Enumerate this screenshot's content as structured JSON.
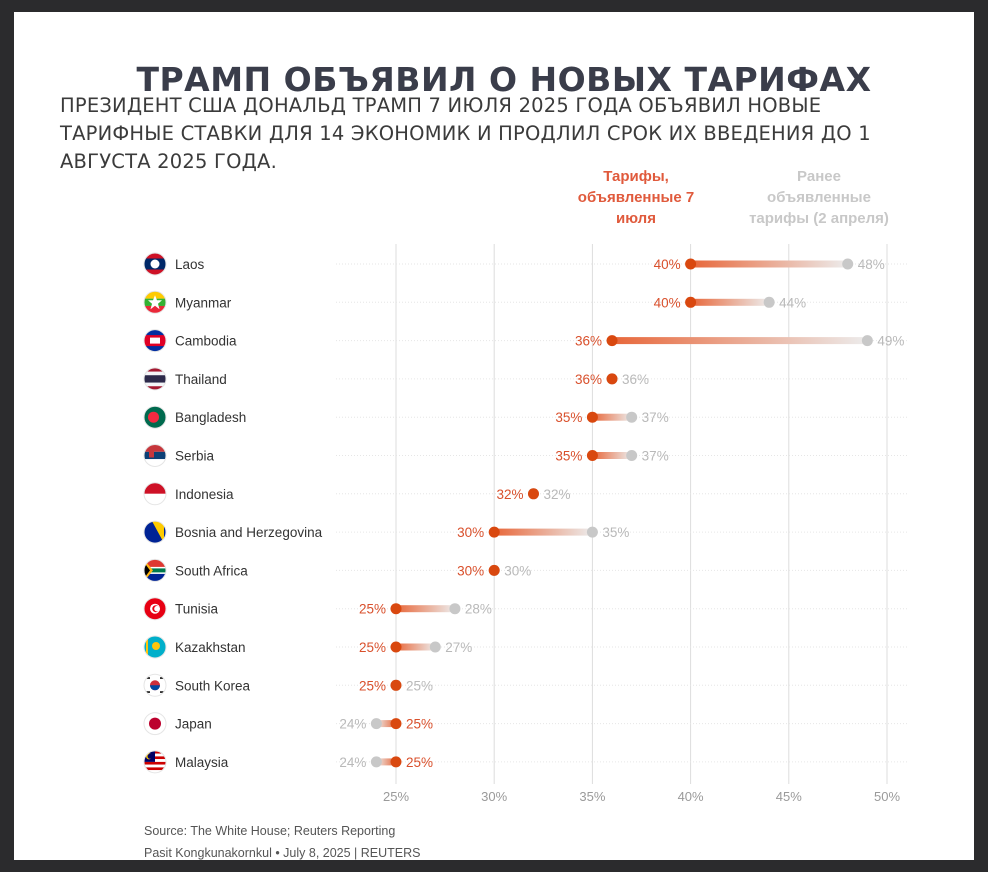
{
  "title": "ТРАМП ОБЪЯВИЛ О НОВЫХ ТАРИФАХ",
  "subtitle": "ПРЕЗИДЕНТ США ДОНАЛЬД ТРАМП 7 ИЮЛЯ 2025 ГОДА ОБЪЯВИЛ НОВЫЕ ТАРИФНЫЕ СТАВКИ ДЛЯ 14 ЭКОНОМИК И ПРОДЛИЛ СРОК ИХ ВВЕДЕНИЯ ДО 1 АВГУСТА 2025 ГОДА.",
  "legend": {
    "new_label": "Тарифы, объявленные 7 июля",
    "old_label": "Ранее объявленные тарифы (2 апреля)"
  },
  "footer": {
    "source": "Source: The White House; Reuters Reporting",
    "credit": "Pasit Kongkunakornkul • July 8, 2025 | REUTERS"
  },
  "colors": {
    "new": "#d9480f",
    "old": "#c8c8c8",
    "grid": "#dddddd"
  },
  "chart_data": {
    "type": "dumbbell",
    "x_ticks": [
      "25%",
      "30%",
      "35%",
      "40%",
      "45%",
      "50%"
    ],
    "xlim": [
      25,
      50
    ],
    "series": [
      {
        "name": "Тарифы, объявленные 7 июля",
        "values": [
          40,
          40,
          36,
          36,
          35,
          35,
          32,
          30,
          30,
          25,
          25,
          25,
          25,
          25
        ]
      },
      {
        "name": "Ранее объявленные тарифы (2 апреля)",
        "values": [
          48,
          44,
          49,
          36,
          37,
          37,
          32,
          35,
          30,
          28,
          27,
          25,
          24,
          24
        ]
      }
    ],
    "categories": [
      "Laos",
      "Myanmar",
      "Cambodia",
      "Thailand",
      "Bangladesh",
      "Serbia",
      "Indonesia",
      "Bosnia and Herzegovina",
      "South Africa",
      "Tunisia",
      "Kazakhstan",
      "South Korea",
      "Japan",
      "Malaysia"
    ],
    "flags": [
      "laos-flag-icon",
      "myanmar-flag-icon",
      "cambodia-flag-icon",
      "thailand-flag-icon",
      "bangladesh-flag-icon",
      "serbia-flag-icon",
      "indonesia-flag-icon",
      "bosnia-flag-icon",
      "south-africa-flag-icon",
      "tunisia-flag-icon",
      "kazakhstan-flag-icon",
      "south-korea-flag-icon",
      "japan-flag-icon",
      "malaysia-flag-icon"
    ]
  }
}
